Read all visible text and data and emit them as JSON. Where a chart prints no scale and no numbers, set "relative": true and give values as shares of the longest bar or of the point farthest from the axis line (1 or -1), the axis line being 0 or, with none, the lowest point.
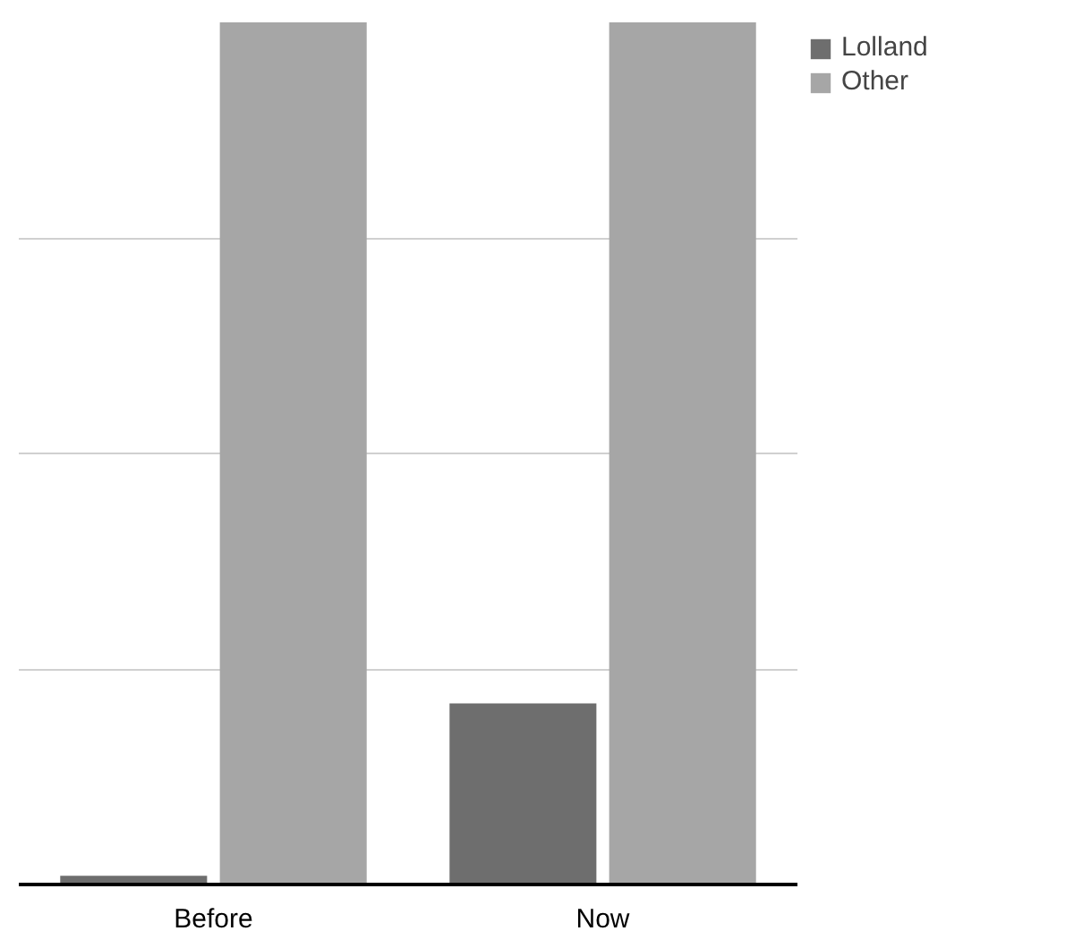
{
  "chart_data": {
    "type": "bar",
    "relative": true,
    "categories": [
      "Before",
      "Now"
    ],
    "series": [
      {
        "name": "Lolland",
        "color": "#6e6e6e",
        "values": [
          0.01,
          0.21
        ]
      },
      {
        "name": "Other",
        "color": "#a6a6a6",
        "values": [
          1,
          1
        ]
      }
    ],
    "grid": "y",
    "legend": "top right"
  }
}
